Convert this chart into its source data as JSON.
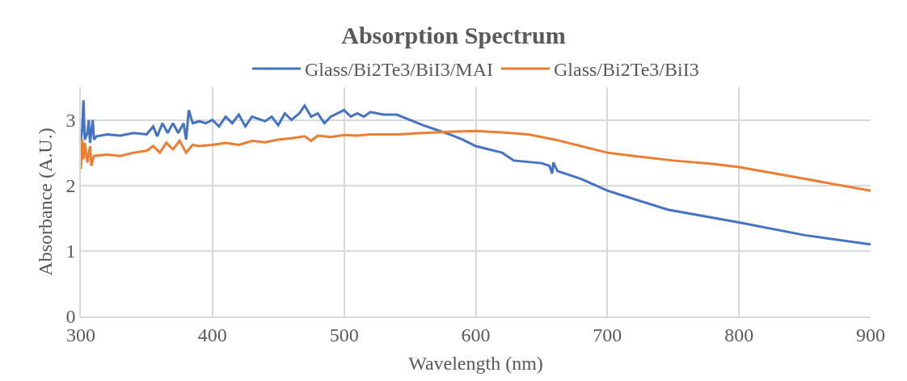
{
  "chart_data": {
    "type": "line",
    "title": "Absorption Spectrum",
    "xlabel": "Wavelength (nm)",
    "ylabel": "Absorbance (A.U.)",
    "xlim": [
      300,
      900
    ],
    "xticks": [
      300,
      400,
      500,
      600,
      700,
      800,
      900
    ],
    "ylim": [
      0,
      3.5
    ],
    "yticks": [
      0,
      1,
      2,
      3
    ],
    "grid": true,
    "legend": "top",
    "marker": "none",
    "line_style": "solid",
    "series": [
      {
        "name": "Glass/Bi2Te3/BiI3/MAI",
        "color": "#4472c4",
        "x": [
          300,
          301,
          302,
          303,
          305,
          306,
          307,
          309,
          310,
          312,
          320,
          330,
          340,
          350,
          355,
          358,
          362,
          366,
          370,
          374,
          378,
          380,
          382,
          385,
          390,
          395,
          400,
          405,
          410,
          415,
          420,
          425,
          430,
          440,
          445,
          450,
          455,
          460,
          466,
          470,
          475,
          480,
          485,
          490,
          495,
          500,
          505,
          510,
          515,
          520,
          530,
          540,
          550,
          560,
          570,
          580,
          590,
          600,
          620,
          629,
          650,
          656,
          658,
          659,
          662,
          680,
          700,
          746,
          799,
          850,
          900
        ],
        "values": [
          2.7,
          2.85,
          3.3,
          2.7,
          2.8,
          3.0,
          2.65,
          3.0,
          2.7,
          2.75,
          2.78,
          2.76,
          2.8,
          2.78,
          2.9,
          2.75,
          2.95,
          2.8,
          2.95,
          2.8,
          2.95,
          2.7,
          3.15,
          2.95,
          2.98,
          2.95,
          3.0,
          2.9,
          3.05,
          2.95,
          3.08,
          2.9,
          3.05,
          2.98,
          3.05,
          2.92,
          3.1,
          3.0,
          3.1,
          3.22,
          3.05,
          3.1,
          2.95,
          3.05,
          3.1,
          3.15,
          3.05,
          3.1,
          3.05,
          3.12,
          3.08,
          3.08,
          3.0,
          2.92,
          2.85,
          2.78,
          2.7,
          2.6,
          2.5,
          2.38,
          2.34,
          2.3,
          2.18,
          2.35,
          2.22,
          2.1,
          1.92,
          1.63,
          1.44,
          1.24,
          1.1
        ]
      },
      {
        "name": "Glass/Bi2Te3/BiI3",
        "color": "#ed7d31",
        "x": [
          300,
          301,
          302,
          303,
          305,
          307,
          308,
          310,
          320,
          330,
          340,
          350,
          355,
          360,
          365,
          370,
          375,
          380,
          385,
          390,
          400,
          410,
          420,
          430,
          440,
          450,
          460,
          470,
          475,
          480,
          490,
          500,
          510,
          520,
          540,
          560,
          580,
          600,
          620,
          640,
          660,
          680,
          700,
          720,
          750,
          780,
          800,
          850,
          900
        ],
        "values": [
          2.25,
          2.7,
          2.4,
          2.65,
          2.35,
          2.6,
          2.3,
          2.45,
          2.47,
          2.45,
          2.5,
          2.53,
          2.6,
          2.5,
          2.65,
          2.55,
          2.68,
          2.5,
          2.62,
          2.6,
          2.62,
          2.65,
          2.62,
          2.68,
          2.66,
          2.7,
          2.72,
          2.75,
          2.68,
          2.76,
          2.74,
          2.77,
          2.76,
          2.78,
          2.78,
          2.8,
          2.82,
          2.83,
          2.81,
          2.78,
          2.7,
          2.6,
          2.5,
          2.45,
          2.38,
          2.33,
          2.28,
          2.1,
          1.92
        ]
      }
    ]
  }
}
